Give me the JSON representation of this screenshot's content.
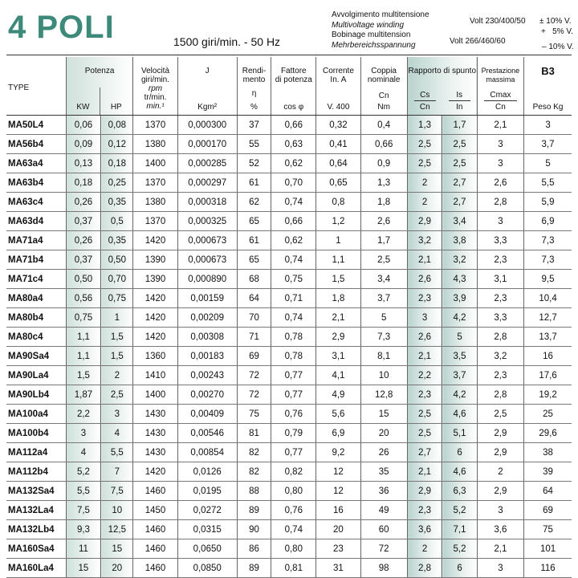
{
  "header": {
    "title": "4 POLI",
    "frequency": "1500 giri/min. - 50 Hz",
    "winding": [
      "Avvolgimento multitensione",
      "Multivoltage winding",
      "Bobinage multitension",
      "Mehrbereichsspannung"
    ],
    "volt1_label": "Volt 230/400/50",
    "volt1_tol": "± 10% V.",
    "volt2_label": "Volt 266/460/60",
    "volt2_tol1": "+   5% V.",
    "volt2_tol2": "– 10% V."
  },
  "columns": {
    "type": "TYPE",
    "potenza": "Potenza",
    "kw": "KW",
    "hp": "HP",
    "vel1": "Velocità",
    "vel2": "giri/min.",
    "vel3": "rpm",
    "vel4": "tr/min.",
    "vel5": "min.¹",
    "j": "J",
    "kgm": "Kgm²",
    "rend1": "Rendi-",
    "rend2": "mento",
    "rend_eta": "η",
    "rend_pct": "%",
    "fatt1": "Fattore",
    "fatt2": "di potenza",
    "cosphi": "cos φ",
    "corr1": "Corrente",
    "corr2": "In. A",
    "v400": "V. 400",
    "coppia1": "Coppia",
    "coppia2": "nominale",
    "cn": "Cn",
    "nm": "Nm",
    "rapporto": "Rapporto di spunto",
    "cs": "Cs",
    "cs_den": "Cn",
    "is": "Is",
    "is_den": "In",
    "prest1": "Prestazione",
    "prest2": "massima",
    "cmax": "Cmax",
    "cmax_den": "Cn",
    "b3": "B3",
    "peso": "Peso Kg"
  },
  "rows": [
    [
      "MA50L4",
      "0,06",
      "0,08",
      "1370",
      "0,000300",
      "37",
      "0,66",
      "0,32",
      "0,4",
      "1,3",
      "1,7",
      "2,1",
      "3"
    ],
    [
      "MA56b4",
      "0,09",
      "0,12",
      "1380",
      "0,000170",
      "55",
      "0,63",
      "0,41",
      "0,66",
      "2,5",
      "2,5",
      "3",
      "3,7"
    ],
    [
      "MA63a4",
      "0,13",
      "0,18",
      "1400",
      "0,000285",
      "52",
      "0,62",
      "0,64",
      "0,9",
      "2,5",
      "2,5",
      "3",
      "5"
    ],
    [
      "MA63b4",
      "0,18",
      "0,25",
      "1370",
      "0,000297",
      "61",
      "0,70",
      "0,65",
      "1,3",
      "2",
      "2,7",
      "2,6",
      "5,5"
    ],
    [
      "MA63c4",
      "0,26",
      "0,35",
      "1380",
      "0,000318",
      "62",
      "0,74",
      "0,8",
      "1,8",
      "2",
      "2,7",
      "2,8",
      "5,9"
    ],
    [
      "MA63d4",
      "0,37",
      "0,5",
      "1370",
      "0,000325",
      "65",
      "0,66",
      "1,2",
      "2,6",
      "2,9",
      "3,4",
      "3",
      "6,9"
    ],
    [
      "MA71a4",
      "0,26",
      "0,35",
      "1420",
      "0,000673",
      "61",
      "0,62",
      "1",
      "1,7",
      "3,2",
      "3,8",
      "3,3",
      "7,3"
    ],
    [
      "MA71b4",
      "0,37",
      "0,50",
      "1390",
      "0,000673",
      "65",
      "0,74",
      "1,1",
      "2,5",
      "2,1",
      "3,2",
      "2,3",
      "7,3"
    ],
    [
      "MA71c4",
      "0,50",
      "0,70",
      "1390",
      "0,000890",
      "68",
      "0,75",
      "1,5",
      "3,4",
      "2,6",
      "4,3",
      "3,1",
      "9,5"
    ],
    [
      "MA80a4",
      "0,56",
      "0,75",
      "1420",
      "0,00159",
      "64",
      "0,71",
      "1,8",
      "3,7",
      "2,3",
      "3,9",
      "2,3",
      "10,4"
    ],
    [
      "MA80b4",
      "0,75",
      "1",
      "1420",
      "0,00209",
      "70",
      "0,74",
      "2,1",
      "5",
      "3",
      "4,2",
      "3,3",
      "12,7"
    ],
    [
      "MA80c4",
      "1,1",
      "1,5",
      "1420",
      "0,00308",
      "71",
      "0,78",
      "2,9",
      "7,3",
      "2,6",
      "5",
      "2,8",
      "13,7"
    ],
    [
      "MA90Sa4",
      "1,1",
      "1,5",
      "1360",
      "0,00183",
      "69",
      "0,78",
      "3,1",
      "8,1",
      "2,1",
      "3,5",
      "3,2",
      "16"
    ],
    [
      "MA90La4",
      "1,5",
      "2",
      "1410",
      "0,00243",
      "72",
      "0,77",
      "4,1",
      "10",
      "2,2",
      "3,7",
      "2,3",
      "17,6"
    ],
    [
      "MA90Lb4",
      "1,87",
      "2,5",
      "1400",
      "0,00270",
      "72",
      "0,77",
      "4,9",
      "12,8",
      "2,3",
      "4,2",
      "2,8",
      "19,2"
    ],
    [
      "MA100a4",
      "2,2",
      "3",
      "1430",
      "0,00409",
      "75",
      "0,76",
      "5,6",
      "15",
      "2,5",
      "4,6",
      "2,5",
      "25"
    ],
    [
      "MA100b4",
      "3",
      "4",
      "1430",
      "0,00546",
      "81",
      "0,79",
      "6,9",
      "20",
      "2,5",
      "5,1",
      "2,9",
      "29,6"
    ],
    [
      "MA112a4",
      "4",
      "5,5",
      "1430",
      "0,00854",
      "82",
      "0,77",
      "9,2",
      "26",
      "2,7",
      "6",
      "2,9",
      "38"
    ],
    [
      "MA112b4",
      "5,2",
      "7",
      "1420",
      "0,0126",
      "82",
      "0,82",
      "12",
      "35",
      "2,1",
      "4,6",
      "2",
      "39"
    ],
    [
      "MA132Sa4",
      "5,5",
      "7,5",
      "1460",
      "0,0195",
      "88",
      "0,80",
      "12",
      "36",
      "2,9",
      "6,3",
      "2,9",
      "64"
    ],
    [
      "MA132La4",
      "7,5",
      "10",
      "1450",
      "0,0272",
      "89",
      "0,76",
      "16",
      "49",
      "2,3",
      "5,2",
      "3",
      "69"
    ],
    [
      "MA132Lb4",
      "9,3",
      "12,5",
      "1460",
      "0,0315",
      "90",
      "0,74",
      "20",
      "60",
      "3,6",
      "7,1",
      "3,6",
      "75"
    ],
    [
      "MA160Sa4",
      "11",
      "15",
      "1460",
      "0,0650",
      "86",
      "0,80",
      "23",
      "72",
      "2",
      "5,2",
      "2,1",
      "101"
    ],
    [
      "MA160La4",
      "15",
      "20",
      "1460",
      "0,0850",
      "89",
      "0,81",
      "31",
      "98",
      "2,8",
      "6",
      "3",
      "116"
    ]
  ]
}
